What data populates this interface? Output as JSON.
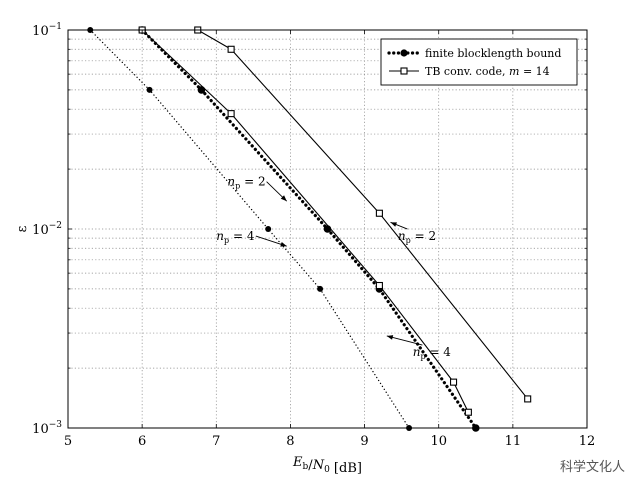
{
  "chart_data": {
    "type": "line",
    "x_scale": "linear",
    "y_scale": "log",
    "xlim": [
      5,
      12
    ],
    "ylim": [
      0.001,
      0.1
    ],
    "grid": true,
    "legend_position": "top-right",
    "xlabel": "E_b/N_0 [dB]",
    "ylabel": "ε",
    "x_ticks": [
      "5",
      "6",
      "7",
      "8",
      "9",
      "10",
      "11",
      "12"
    ],
    "y_ticks": [
      {
        "value": 0.1,
        "base": "10",
        "exp": "−1"
      },
      {
        "value": 0.01,
        "base": "10",
        "exp": "−2"
      },
      {
        "value": 0.001,
        "base": "10",
        "exp": "−3"
      }
    ],
    "series": [
      {
        "name": "finite blocklength bound",
        "style": "thick-dotted",
        "marker": "filled-circle",
        "points": [
          [
            6.0,
            0.1
          ],
          [
            6.8,
            0.05
          ],
          [
            8.5,
            0.01
          ],
          [
            9.2,
            0.005
          ],
          [
            10.5,
            0.001
          ]
        ]
      },
      {
        "name": "",
        "style": "thin-dotted",
        "marker": "filled-circle",
        "points": [
          [
            5.3,
            0.1
          ],
          [
            6.1,
            0.05
          ],
          [
            7.7,
            0.01
          ],
          [
            8.4,
            0.005
          ],
          [
            9.6,
            0.001
          ]
        ]
      },
      {
        "name": "TB conv. code, m = 14",
        "style": "solid",
        "marker": "open-square",
        "points": [
          [
            6.0,
            0.1
          ],
          [
            7.2,
            0.038
          ],
          [
            9.2,
            0.0052
          ],
          [
            10.2,
            0.0017
          ],
          [
            10.4,
            0.0012
          ]
        ]
      },
      {
        "name": "",
        "style": "solid",
        "marker": "open-square",
        "points": [
          [
            6.75,
            0.1
          ],
          [
            7.2,
            0.08
          ],
          [
            9.2,
            0.012
          ],
          [
            11.2,
            0.0014
          ]
        ]
      }
    ],
    "legend": [
      {
        "label": "finite blocklength bound"
      },
      {
        "label": "TB conv. code, m = 14"
      }
    ],
    "annotations": [
      {
        "label": "n_p = 2",
        "text_at": [
          7.15,
          0.0165
        ],
        "arrow_to": [
          7.95,
          0.0138
        ]
      },
      {
        "label": "n_p = 4",
        "text_at": [
          7.0,
          0.0088
        ],
        "arrow_to": [
          7.95,
          0.0082
        ]
      },
      {
        "label": "n_p = 2",
        "text_at": [
          9.45,
          0.0088
        ],
        "arrow_to": [
          9.35,
          0.0108
        ]
      },
      {
        "label": "n_p = 4",
        "text_at": [
          9.65,
          0.0023
        ],
        "arrow_to": [
          9.3,
          0.0029
        ]
      }
    ]
  },
  "watermark": "科学文化人"
}
